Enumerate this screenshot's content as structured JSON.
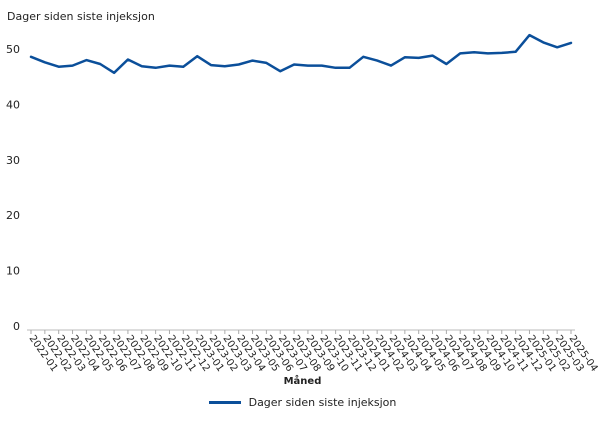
{
  "chart_data": {
    "type": "line",
    "title": "Dager siden siste injeksjon",
    "xlabel": "Måned",
    "ylabel": "",
    "ylim": [
      0,
      50
    ],
    "yticks": [
      0,
      10,
      20,
      30,
      40,
      50
    ],
    "grid": false,
    "legend_position": "bottom",
    "categories": [
      "2022-01",
      "2022-02",
      "2022-03",
      "2022-04",
      "2022-05",
      "2022-06",
      "2022-07",
      "2022-08",
      "2022-09",
      "2022-10",
      "2022-11",
      "2022-12",
      "2023-01",
      "2023-02",
      "2023-03",
      "2023-04",
      "2023-05",
      "2023-06",
      "2023-07",
      "2023-08",
      "2023-09",
      "2023-10",
      "2023-11",
      "2023-12",
      "2024-01",
      "2024-02",
      "2024-03",
      "2024-04",
      "2024-05",
      "2024-06",
      "2024-07",
      "2024-08",
      "2024-09",
      "2024-10",
      "2024-11",
      "2024-12",
      "2025-01",
      "2025-02",
      "2025-03",
      "2025-04"
    ],
    "series": [
      {
        "name": "Dager siden siste injeksjon",
        "color": "#0b4f9a",
        "values": [
          48.6,
          47.6,
          46.8,
          47.0,
          48.0,
          47.3,
          45.7,
          48.1,
          46.9,
          46.6,
          47.0,
          46.8,
          48.7,
          47.1,
          46.9,
          47.2,
          47.9,
          47.5,
          46.0,
          47.2,
          47.0,
          47.0,
          46.6,
          46.6,
          48.6,
          47.9,
          47.0,
          48.5,
          48.4,
          48.8,
          47.3,
          49.2,
          49.4,
          49.2,
          49.3,
          49.5,
          52.5,
          51.2,
          50.3,
          51.1
        ]
      }
    ]
  },
  "legend": {
    "label": "Dager siden siste injeksjon"
  }
}
